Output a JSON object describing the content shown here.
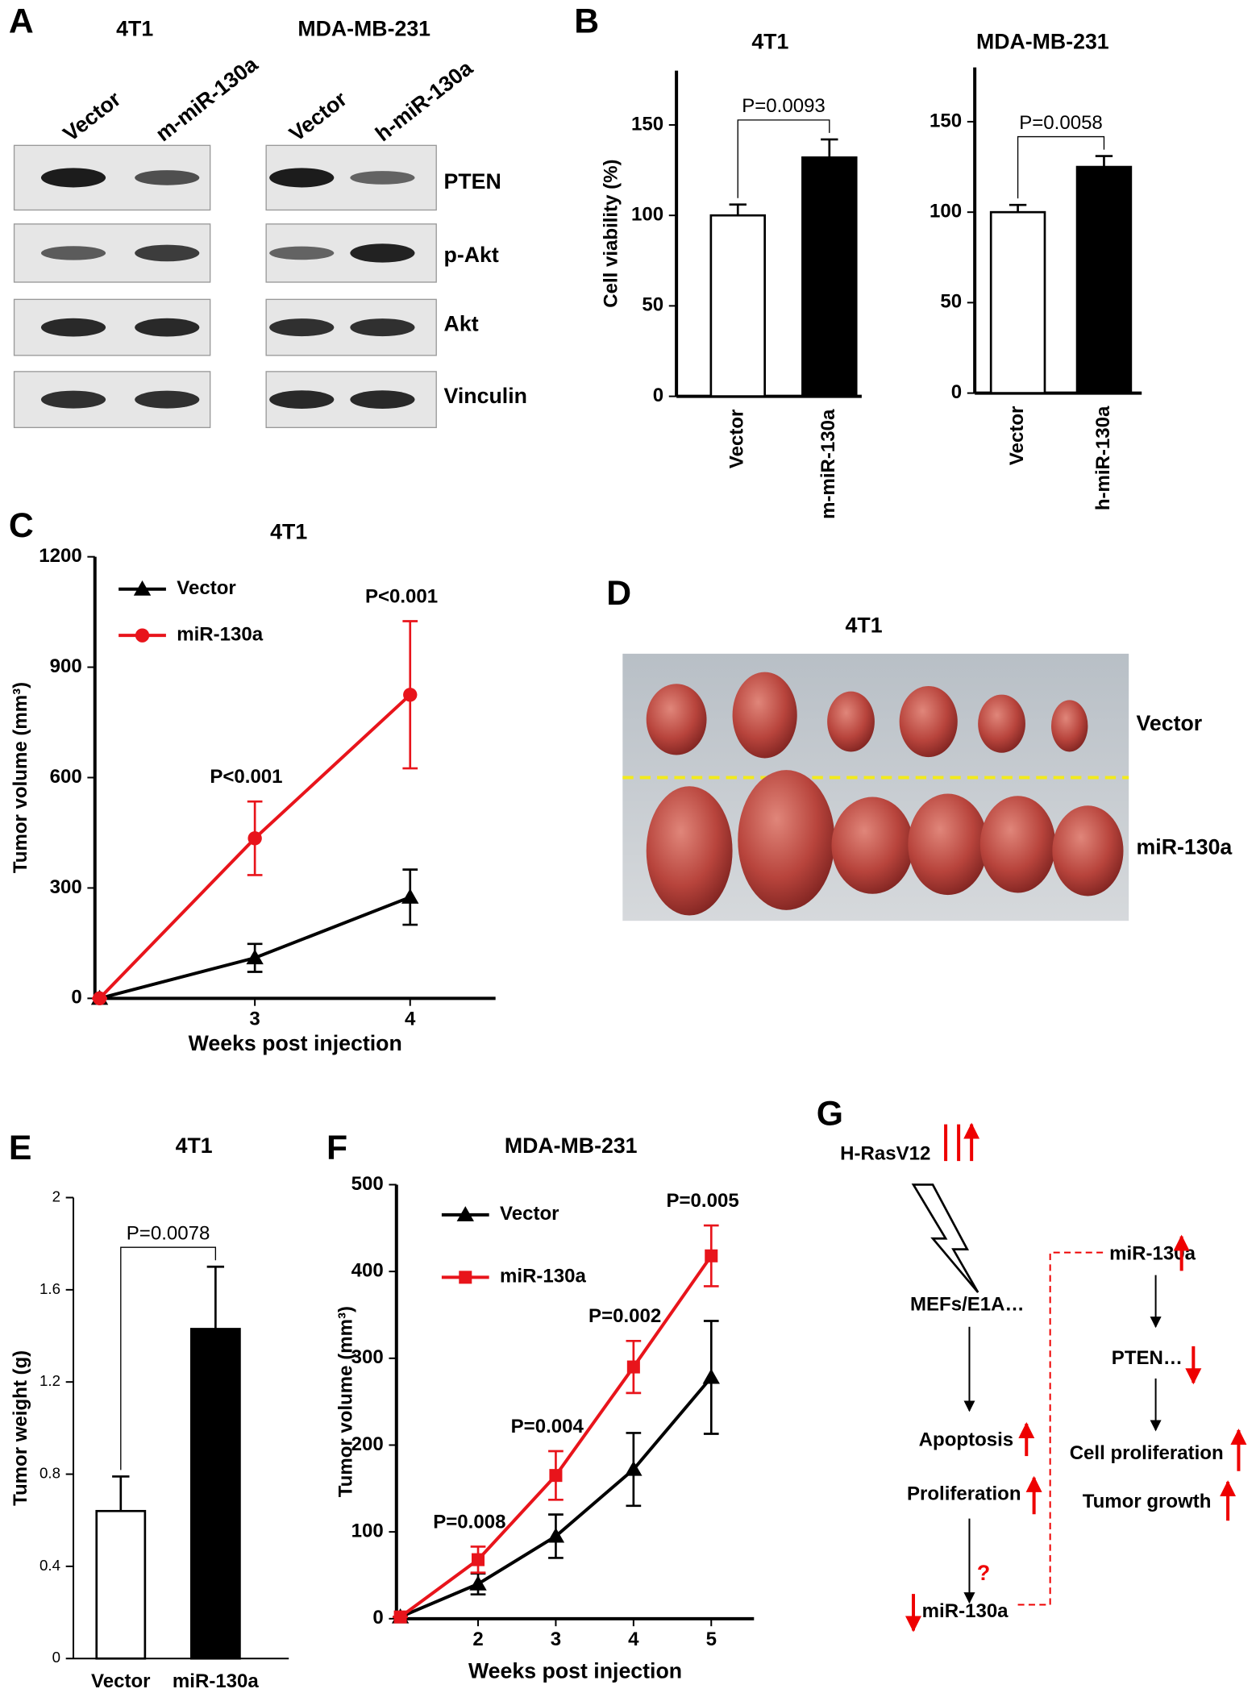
{
  "panel_labels": [
    "A",
    "B",
    "C",
    "D",
    "E",
    "F",
    "G"
  ],
  "blot": {
    "groups": [
      {
        "title": "4T1",
        "lanes": [
          "Vector",
          "m-miR-130a"
        ]
      },
      {
        "title": "MDA-MB-231",
        "lanes": [
          "Vector",
          "h-miR-130a"
        ]
      }
    ],
    "rows": [
      "PTEN",
      "p-Akt",
      "Akt",
      "Vinculin"
    ]
  },
  "chart_data": [
    {
      "type": "bar",
      "title": "4T1",
      "y_label": "Cell viability (%)",
      "categories": [
        "Vector",
        "m-miR-130a"
      ],
      "values": [
        100,
        132
      ],
      "errors": [
        6,
        10
      ],
      "colors": [
        "#ffffff",
        "#000000"
      ],
      "ylim": [
        0,
        180
      ],
      "yticks": [
        0,
        50,
        100,
        150
      ],
      "annotations": [
        "P=0.0093"
      ]
    },
    {
      "type": "bar",
      "title": "MDA-MB-231",
      "categories": [
        "Vector",
        "h-miR-130a"
      ],
      "values": [
        100,
        125
      ],
      "errors": [
        4,
        6
      ],
      "colors": [
        "#ffffff",
        "#000000"
      ],
      "ylim": [
        0,
        180
      ],
      "yticks": [
        0,
        50,
        100,
        150
      ],
      "annotations": [
        "P=0.0058"
      ]
    },
    {
      "type": "line",
      "title": "4T1",
      "x_label": "Weeks post injection",
      "y_label": "Tumor volume (mm³)",
      "x": [
        2,
        3,
        4
      ],
      "xlim": [
        1.97,
        4.55
      ],
      "xticks": [
        3,
        4
      ],
      "ylim": [
        0,
        1200
      ],
      "yticks": [
        0,
        300,
        600,
        900,
        1200
      ],
      "series": [
        {
          "name": "Vector",
          "color": "#000000",
          "marker": "triangle",
          "values": [
            0,
            110,
            275
          ],
          "errors": [
            0,
            38,
            75
          ]
        },
        {
          "name": "miR-130a",
          "color": "#e8141b",
          "marker": "circle",
          "values": [
            0,
            435,
            825
          ],
          "errors": [
            0,
            100,
            200
          ]
        }
      ],
      "annotations": [
        "P<0.001",
        "P<0.001"
      ]
    },
    {
      "type": "bar",
      "title": "4T1",
      "y_label": "Tumor weight (g)",
      "categories": [
        "Vector",
        "miR-130a"
      ],
      "values": [
        0.64,
        1.43
      ],
      "errors": [
        0.15,
        0.27
      ],
      "colors": [
        "#ffffff",
        "#000000"
      ],
      "ylim": [
        0,
        2
      ],
      "yticks": [
        0,
        0.4,
        0.8,
        1.2,
        1.6,
        2
      ],
      "annotations": [
        "P=0.0078"
      ]
    },
    {
      "type": "line",
      "title": "MDA-MB-231",
      "x_label": "Weeks post injection",
      "y_label": "Tumor volume (mm³)",
      "x": [
        1,
        2,
        3,
        4,
        5
      ],
      "xlim": [
        0.95,
        5.55
      ],
      "xticks": [
        2,
        3,
        4,
        5
      ],
      "ylim": [
        0,
        500
      ],
      "yticks": [
        0,
        100,
        200,
        300,
        400,
        500
      ],
      "series": [
        {
          "name": "Vector",
          "color": "#000000",
          "marker": "triangle",
          "values": [
            2,
            40,
            95,
            172,
            278
          ],
          "errors": [
            0,
            12,
            25,
            42,
            65
          ]
        },
        {
          "name": "miR-130a",
          "color": "#e8141b",
          "marker": "square",
          "values": [
            2,
            68,
            165,
            290,
            418
          ],
          "errors": [
            0,
            15,
            28,
            30,
            35
          ]
        }
      ],
      "annotations": [
        "P=0.008",
        "P=0.004",
        "P=0.002",
        "P=0.005"
      ]
    }
  ],
  "photo": {
    "title": "4T1",
    "rows": [
      "Vector",
      "miR-130a"
    ]
  },
  "diagram": {
    "nodes": [
      "H-RasV12",
      "MEFs/E1A…",
      "Apoptosis",
      "Proliferation",
      "?",
      "miR-130a",
      "miR-130a",
      "PTEN…",
      "Cell proliferation",
      "Tumor growth"
    ]
  }
}
